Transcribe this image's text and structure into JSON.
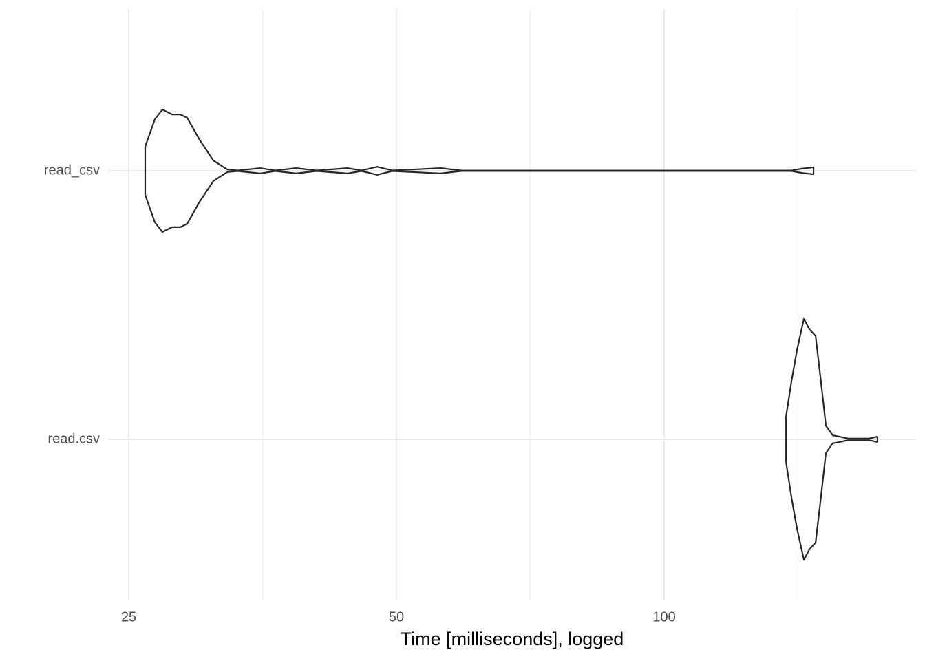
{
  "chart_data": {
    "type": "violin",
    "orientation": "horizontal",
    "xlabel": "Time [milliseconds], logged",
    "xscale": "log",
    "categories": [
      "read_csv",
      "read.csv"
    ],
    "xlim": [
      23.74,
      191.6
    ],
    "xticks": [
      25,
      50,
      100
    ],
    "x_minor_ticks": [
      35.36,
      70.71,
      141.42
    ],
    "grid": true,
    "color": "#262626",
    "violins": [
      {
        "x": [
          26.09,
          26.75,
          27.28,
          27.97,
          28.57,
          29.09,
          30.04,
          31.13,
          32.26,
          33.13,
          35.14,
          36.54,
          38.54,
          40.66,
          44.06,
          45.66,
          47.57,
          49.47,
          56.05,
          59.12,
          139.06,
          142.82,
          147.2
        ],
        "width": [
          0.09,
          0.192,
          0.228,
          0.21,
          0.21,
          0.197,
          0.115,
          0.038,
          0.005,
          0.001,
          0.01,
          0.001,
          0.01,
          0.001,
          0.01,
          0.001,
          0.015,
          0.001,
          0.01,
          0.001,
          0.001,
          0.008,
          0.013
        ]
      },
      {
        "x": [
          137.1,
          139.06,
          141.05,
          143.58,
          145.64,
          148.0,
          149.86,
          152.0,
          154.7,
          157.5,
          160.9,
          169.8,
          173.7
        ],
        "width": [
          0.085,
          0.218,
          0.333,
          0.449,
          0.41,
          0.385,
          0.231,
          0.051,
          0.015,
          0.01,
          0.003,
          0.003,
          0.01
        ]
      }
    ]
  }
}
